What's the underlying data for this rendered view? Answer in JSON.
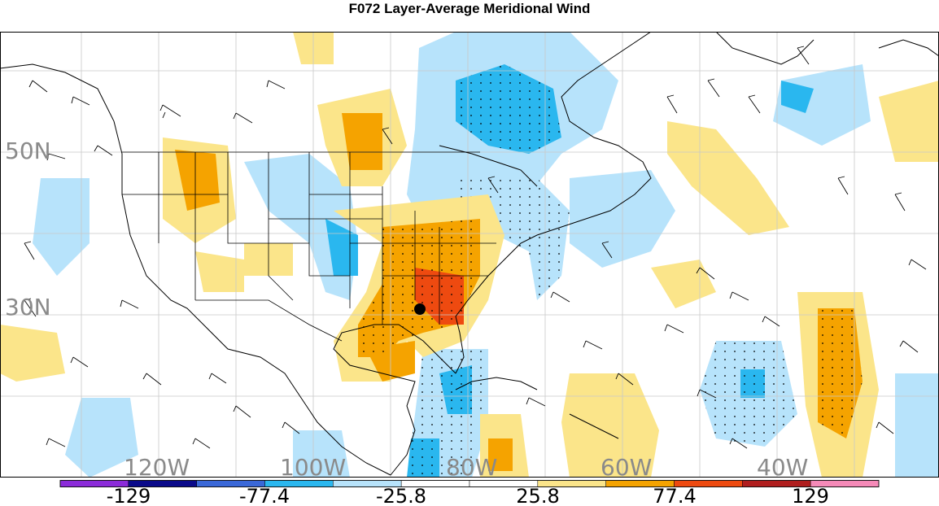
{
  "title": "F072 Layer-Average Meridional Wind",
  "map": {
    "lat_labels": [
      "50N",
      "30N"
    ],
    "lon_labels": [
      "120W",
      "100W",
      "80W",
      "60W",
      "40W"
    ],
    "colors": {
      "background": "#ffffff",
      "coastline": "#000000",
      "grid": "#c8c8c8",
      "label": "#8a8a8a"
    }
  },
  "colorbar": {
    "labels": [
      "-129",
      "-77.4",
      "-25.8",
      "25.8",
      "77.4",
      "129"
    ],
    "segments": [
      "#8b2bd9",
      "#0a0a8a",
      "#3a68d8",
      "#2ab7ef",
      "#b7e3fb",
      "#ffffff",
      "#ffffff",
      "#fbe58a",
      "#f5a300",
      "#ee4a10",
      "#b01e1e",
      "#f58ab8"
    ]
  }
}
